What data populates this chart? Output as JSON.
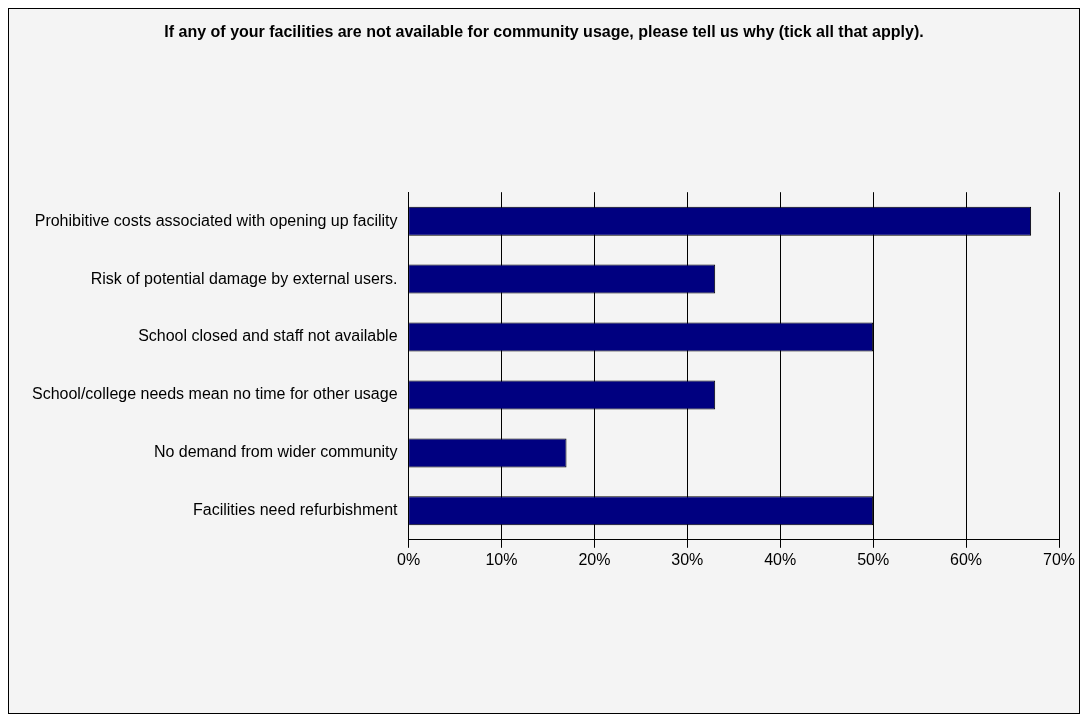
{
  "chart_data": {
    "type": "bar",
    "orientation": "horizontal",
    "title": "If any of your facilities are not available for community usage, please tell us why (tick all that apply).",
    "categories": [
      "Prohibitive costs associated with opening up facility",
      "Risk of potential damage by external users.",
      "School closed and staff not available",
      "School/college needs mean no time for other usage",
      "No demand from wider community",
      "Facilities need refurbishment"
    ],
    "values": [
      67,
      33,
      50,
      33,
      17,
      50
    ],
    "color": "#000080",
    "xlim": [
      0,
      70
    ],
    "xticks": [
      {
        "value": 0,
        "label": "0%"
      },
      {
        "value": 10,
        "label": "10%"
      },
      {
        "value": 20,
        "label": "20%"
      },
      {
        "value": 30,
        "label": "30%"
      },
      {
        "value": 40,
        "label": "40%"
      },
      {
        "value": 50,
        "label": "50%"
      },
      {
        "value": 60,
        "label": "60%"
      },
      {
        "value": 70,
        "label": "70%"
      }
    ],
    "grid": "x",
    "legend": false
  }
}
